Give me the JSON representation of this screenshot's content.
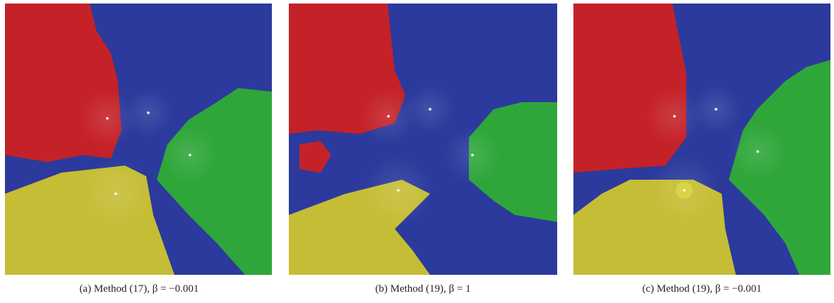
{
  "panels": [
    {
      "caption": "(a)  Method (17), β = −0.001"
    },
    {
      "caption": "(b)  Method (19), β = 1"
    },
    {
      "caption": "(c)  Method (19), β = −0.001"
    }
  ]
}
